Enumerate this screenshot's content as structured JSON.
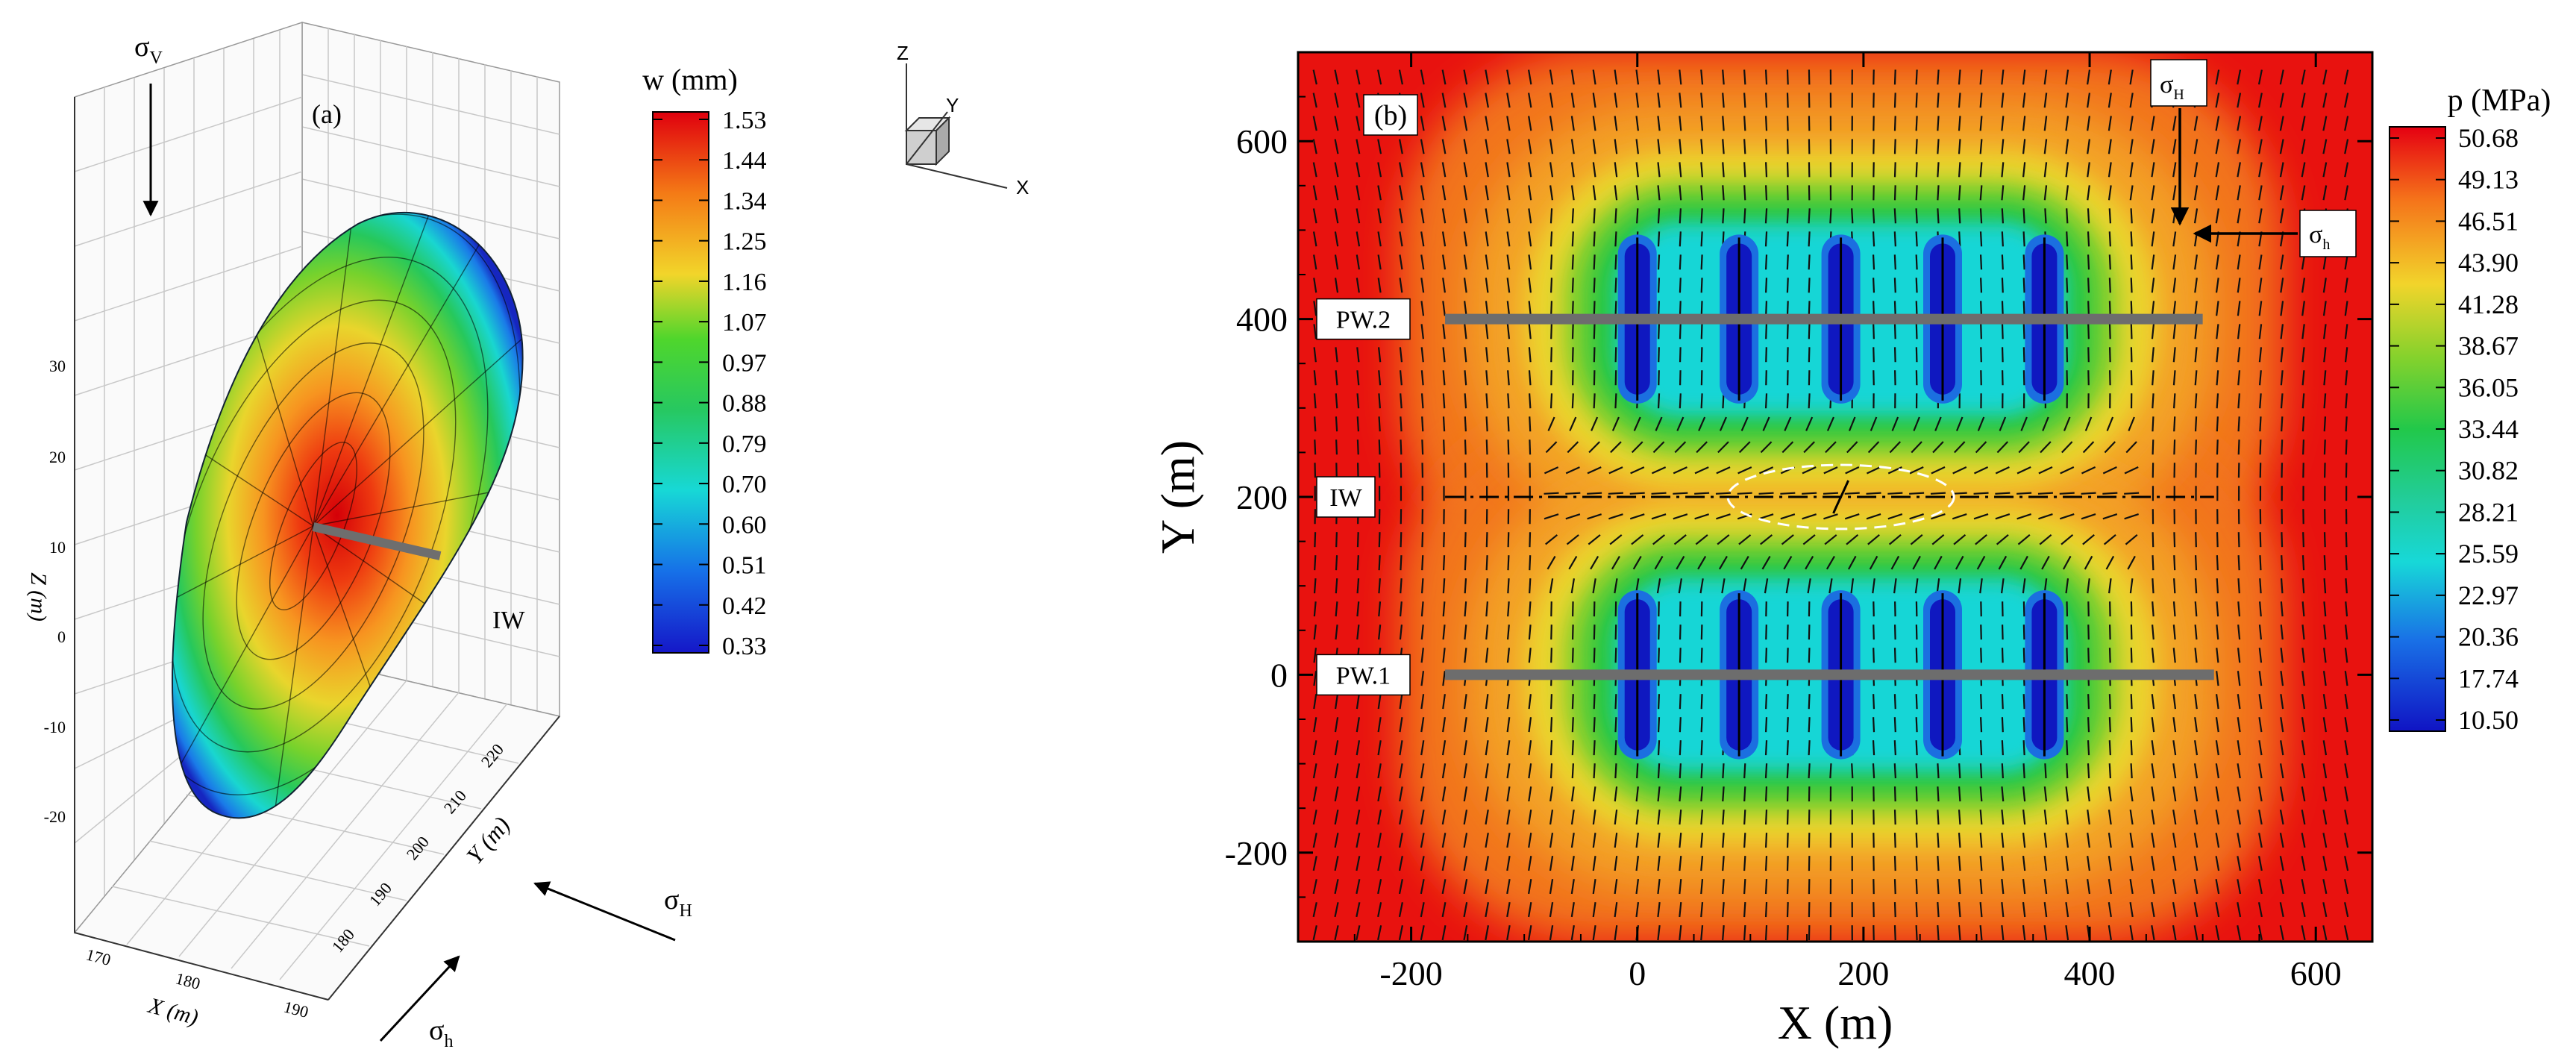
{
  "panel_a": {
    "label": "(a)",
    "sigma_v": {
      "base": "σ",
      "sub": "V"
    },
    "sigma_H": {
      "base": "σ",
      "sub": "H"
    },
    "sigma_h": {
      "base": "σ",
      "sub": "h"
    },
    "well_label": "IW",
    "z_axis_label": "Z (m)",
    "y_axis_label": "Y (m)",
    "x_axis_label": "X (m)",
    "z_ticks": [
      "30",
      "20",
      "10",
      "0",
      "-10",
      "-20"
    ],
    "y_ticks": [
      "220",
      "210",
      "200",
      "190",
      "180"
    ],
    "x_ticks": [
      "170",
      "180",
      "190"
    ],
    "colorbar": {
      "title": "w (mm)",
      "levels": [
        "1.53",
        "1.44",
        "1.34",
        "1.25",
        "1.16",
        "1.07",
        "0.97",
        "0.88",
        "0.79",
        "0.70",
        "0.60",
        "0.51",
        "0.42",
        "0.33"
      ]
    },
    "triad": {
      "z": "Z",
      "y": "Y",
      "x": "X"
    }
  },
  "panel_b": {
    "label": "(b)",
    "sigma_H": {
      "base": "σ",
      "sub": "H"
    },
    "sigma_h": {
      "base": "σ",
      "sub": "h"
    },
    "well_labels": {
      "pw2": "PW.2",
      "iw": "IW",
      "pw1": "PW.1"
    },
    "colorbar": {
      "title": "p (MPa)",
      "levels": [
        "50.68",
        "49.13",
        "46.51",
        "43.90",
        "41.28",
        "38.67",
        "36.05",
        "33.44",
        "30.82",
        "28.21",
        "25.59",
        "22.97",
        "20.36",
        "17.74",
        "10.50"
      ]
    }
  },
  "chart_data": [
    {
      "type": "surface3d",
      "title": "",
      "xlabel": "X (m)",
      "ylabel": "Y (m)",
      "zlabel": "Z (m)",
      "xlim": [
        170,
        190
      ],
      "ylim": [
        175,
        225
      ],
      "zlim": [
        -25,
        35
      ],
      "colorbar_title": "w (mm)",
      "colorbar_range": [
        0.33,
        1.53
      ],
      "annotations": [
        "(a)",
        "IW"
      ]
    },
    {
      "type": "heatmap",
      "title": "",
      "xlabel": "X (m)",
      "ylabel": "Y (m)",
      "xlim": [
        -300,
        650
      ],
      "ylim": [
        -300,
        700
      ],
      "x_ticks": [
        -200,
        0,
        200,
        400,
        600
      ],
      "y_ticks": [
        -200,
        0,
        200,
        400,
        600
      ],
      "colorbar_title": "p (MPa)",
      "colorbar_range": [
        10.5,
        50.68
      ],
      "fractures_x": [
        0,
        90,
        180,
        270,
        360
      ],
      "fracture_rows_y": [
        400,
        0
      ],
      "wells": [
        {
          "name": "PW.2",
          "y": 400,
          "x": [
            -170,
            500
          ]
        },
        {
          "name": "IW",
          "y": 200,
          "x": [
            -170,
            510
          ]
        },
        {
          "name": "PW.1",
          "y": 0,
          "x": [
            -170,
            510
          ]
        }
      ],
      "annotations": [
        "(b)"
      ]
    }
  ]
}
